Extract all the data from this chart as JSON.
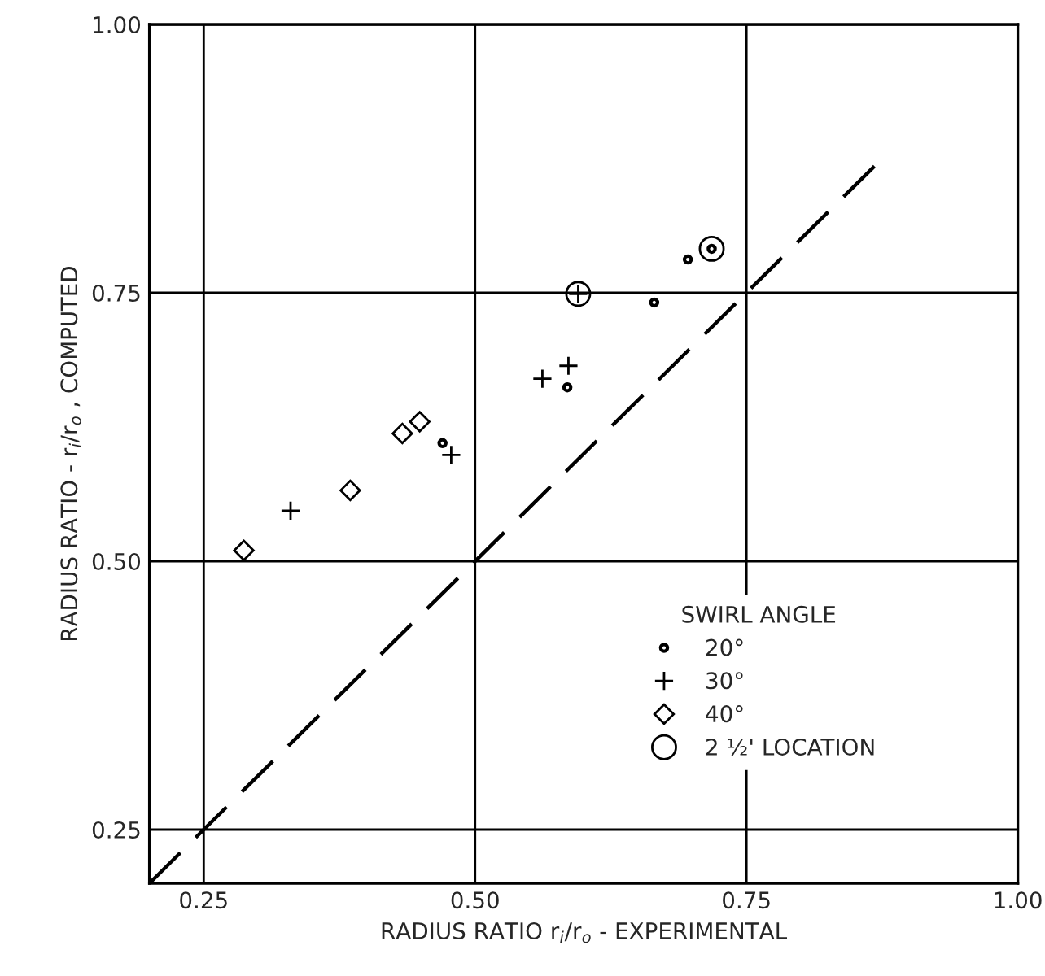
{
  "chart_data": {
    "type": "scatter",
    "xlabel": "RADIUS RATIO r$_{i}$/r$_{o}$ - EXPERIMENTAL",
    "ylabel": "RADIUS RATIO - r$_{i}$/r$_{o}$ , COMPUTED",
    "legend_title": "SWIRL ANGLE",
    "series": [
      {
        "name": "20°",
        "color": "#000000",
        "marker": "circle",
        "x": [
          0.47,
          0.585,
          0.665,
          0.696,
          0.718
        ],
        "values": [
          0.61,
          0.662,
          0.741,
          0.781,
          0.791
        ]
      },
      {
        "name": "30°",
        "color": "#000000",
        "marker": "cross",
        "x": [
          0.33,
          0.478,
          0.562,
          0.586,
          0.595
        ],
        "values": [
          0.547,
          0.599,
          0.67,
          0.682,
          0.749
        ]
      },
      {
        "name": "40°",
        "color": "#000000",
        "marker": "diamond",
        "x": [
          0.287,
          0.385,
          0.433,
          0.449
        ],
        "values": [
          0.51,
          0.566,
          0.619,
          0.63
        ]
      },
      {
        "name": "2 ½' LOCATION",
        "color": "#000000",
        "marker": "circle",
        "x": [
          0.595,
          0.718
        ],
        "values": [
          0.749,
          0.791
        ]
      },
      {
        "type": "line",
        "color": "#000000",
        "line_style": "dashed",
        "marker": "none",
        "x": [
          0.2,
          0.87
        ],
        "values": [
          0.2,
          0.87
        ]
      }
    ],
    "xlim": [
      0.2,
      1.0
    ],
    "ylim": [
      0.2,
      1.0
    ],
    "xticks": [
      0.25,
      {
        "value": 0.5,
        "label": "0.50"
      },
      0.75,
      {
        "value": 1.0,
        "label": "1.00"
      }
    ],
    "yticks": [
      0.25,
      {
        "value": 0.5,
        "label": "0.50"
      },
      0.75,
      {
        "value": 1.0,
        "label": "1.00"
      }
    ],
    "grid": true,
    "legend": "bottom right"
  }
}
